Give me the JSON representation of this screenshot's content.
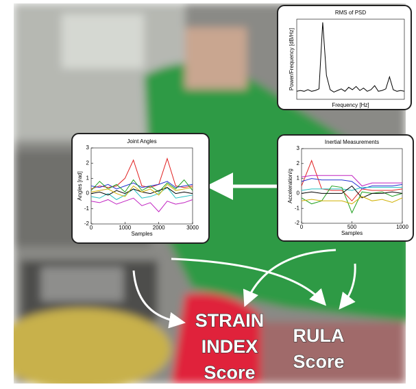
{
  "charts": [
    {
      "type": "line",
      "title": "RMS of PSD",
      "x_label": "Frequency [Hz]",
      "y_label": "Power/Frequency [dB/Hz]",
      "ylim": [
        0,
        10
      ],
      "series": [
        {
          "color": "#000000",
          "values": [
            1,
            1.1,
            1,
            1.2,
            1,
            1.1,
            1.3,
            9.6,
            3,
            1.2,
            0.9,
            1.1,
            1.3,
            1,
            1.5,
            1.2,
            1.6,
            1.1,
            1.4,
            1,
            1.2,
            1.7,
            1,
            1.1,
            1.3,
            2.8,
            1.2,
            1,
            1.1,
            1
          ]
        }
      ]
    },
    {
      "type": "line",
      "title": "Joint Angles",
      "x_label": "Samples",
      "y_label": "Angles [rad]",
      "x": [
        0,
        250,
        500,
        750,
        1000,
        1250,
        1500,
        1750,
        2000,
        2250,
        2500,
        2750,
        3000
      ],
      "xlim": [
        0,
        3000
      ],
      "xticks": [
        0,
        1000,
        2000,
        3000
      ],
      "ylim": [
        -2,
        3
      ],
      "yticks": [
        -2,
        -1,
        0,
        1,
        2,
        3
      ],
      "series": [
        {
          "color": "#e02020",
          "values": [
            0.3,
            0.5,
            0.4,
            0.5,
            1,
            2.2,
            0.5,
            0.4,
            0.6,
            2.3,
            0.5,
            0.4,
            0.5
          ]
        },
        {
          "color": "#2030d0",
          "values": [
            0.5,
            0.4,
            0.6,
            0.3,
            0.5,
            0.7,
            0.4,
            0.5,
            0.6,
            0.8,
            0.4,
            0.5,
            0.6
          ]
        },
        {
          "color": "#20a020",
          "values": [
            0.2,
            0.8,
            0.3,
            0.6,
            0.1,
            0.9,
            0.2,
            0.5,
            0.1,
            0.7,
            0.3,
            0.9,
            0.2
          ]
        },
        {
          "color": "#20c0c0",
          "values": [
            -0.2,
            -0.3,
            0,
            -0.4,
            -0.1,
            0.3,
            -0.3,
            -0.2,
            0,
            0.4,
            -0.3,
            -0.2,
            -0.1
          ]
        },
        {
          "color": "#c020c0",
          "values": [
            -0.5,
            -0.6,
            -0.4,
            -0.7,
            -0.5,
            -0.3,
            -0.8,
            -0.6,
            -1.2,
            -0.5,
            -0.7,
            -0.6,
            -0.4
          ]
        },
        {
          "color": "#000000",
          "values": [
            0,
            0.1,
            -0.1,
            0.2,
            0,
            0.3,
            0.1,
            0,
            0.2,
            0.4,
            0,
            0.1,
            0
          ]
        },
        {
          "color": "#d0b000",
          "values": [
            0.1,
            0.2,
            0.3,
            0,
            -0.2,
            0.5,
            0.1,
            0.3,
            -0.1,
            0.6,
            0.2,
            0.3,
            0.4
          ]
        }
      ]
    },
    {
      "type": "line",
      "title": "Inertial Measurements",
      "x_label": "Samples",
      "y_label": "Acceleration/g",
      "x": [
        0,
        100,
        200,
        300,
        400,
        500,
        600,
        700,
        800,
        900,
        1000
      ],
      "xlim": [
        0,
        1000
      ],
      "xticks": [
        0,
        500,
        1000
      ],
      "ylim": [
        -2,
        3
      ],
      "yticks": [
        -2,
        -1,
        0,
        1,
        2,
        3
      ],
      "series": [
        {
          "color": "#e02020",
          "values": [
            0.5,
            2.2,
            0.3,
            0.2,
            0.2,
            -0.5,
            0.3,
            0.2,
            0.2,
            0.2,
            0.3
          ]
        },
        {
          "color": "#2030d0",
          "values": [
            0.8,
            1,
            0.9,
            0.9,
            0.9,
            0.8,
            0.3,
            0.5,
            0.5,
            0.5,
            0.6
          ]
        },
        {
          "color": "#c020c0",
          "values": [
            1.1,
            1.2,
            1.2,
            1.2,
            1.2,
            1.2,
            0.5,
            0.7,
            0.7,
            0.7,
            0.7
          ]
        },
        {
          "color": "#20c0c0",
          "values": [
            0.2,
            0.3,
            0.3,
            0.3,
            0.3,
            0.2,
            0.4,
            0.4,
            0.4,
            0.4,
            0.4
          ]
        },
        {
          "color": "#20a020",
          "values": [
            -0.3,
            -0.7,
            -0.5,
            0.5,
            0.4,
            -1.3,
            0.1,
            0,
            0.1,
            -0.2,
            0
          ]
        },
        {
          "color": "#000000",
          "values": [
            0,
            0.1,
            0,
            0,
            0,
            0.5,
            -0.3,
            0,
            0,
            0.1,
            0
          ]
        },
        {
          "color": "#d0b000",
          "values": [
            -0.5,
            -0.4,
            -0.5,
            -0.5,
            -0.5,
            -0.7,
            -0.2,
            -0.5,
            -0.4,
            -0.6,
            -0.3
          ]
        }
      ]
    }
  ],
  "scores": [
    {
      "lines": [
        "STRAIN",
        "INDEX",
        "Score"
      ]
    },
    {
      "lines": [
        "RULA",
        "Score"
      ]
    }
  ]
}
